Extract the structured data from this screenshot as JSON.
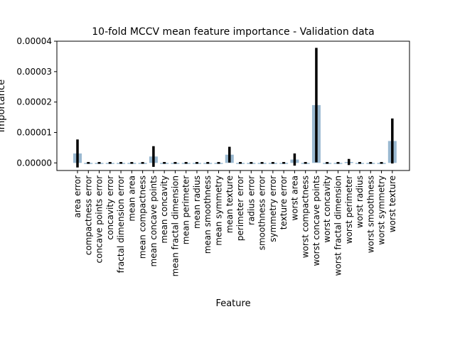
{
  "chart_data": {
    "type": "bar",
    "title": "10-fold MCCV mean feature importance - Validation data",
    "xlabel": "Feature",
    "ylabel": "Importance",
    "ylim": [
      -2.5e-06,
      4e-05
    ],
    "yticks": [
      0,
      1e-05,
      2e-05,
      3e-05,
      4e-05
    ],
    "ytick_labels": [
      "0.00000",
      "0.00001",
      "0.00002",
      "0.00003",
      "0.00004"
    ],
    "grid": false,
    "bar_color": "#8fb1cc",
    "error_color": "#000000",
    "categories": [
      "area error",
      "compactness error",
      "concave points error",
      "concavity error",
      "fractal dimension error",
      "mean area",
      "mean compactness",
      "mean concave points",
      "mean concavity",
      "mean fractal dimension",
      "mean perimeter",
      "mean radius",
      "mean smoothness",
      "mean symmetry",
      "mean texture",
      "perimeter error",
      "radius error",
      "smoothness error",
      "symmetry error",
      "texture error",
      "worst area",
      "worst compactness",
      "worst concave points",
      "worst concavity",
      "worst fractal dimension",
      "worst perimeter",
      "worst radius",
      "worst smoothness",
      "worst symmetry",
      "worst texture"
    ],
    "values": [
      3.1e-06,
      0,
      0,
      0,
      0,
      0,
      0,
      2.1e-06,
      0,
      0,
      0,
      0,
      0,
      0,
      2.7e-06,
      0,
      0,
      0,
      0,
      0,
      1.1e-06,
      0,
      1.9e-05,
      0,
      0,
      3e-07,
      0,
      0,
      0,
      7.2e-06
    ],
    "errors": [
      4.6e-06,
      0,
      0,
      0,
      0,
      0,
      0,
      3.4e-06,
      0,
      0,
      0,
      0,
      0,
      0,
      2.6e-06,
      0,
      0,
      0,
      0,
      0,
      2e-06,
      0,
      1.88e-05,
      0,
      0,
      1e-06,
      0,
      0,
      0,
      7.4e-06
    ]
  }
}
